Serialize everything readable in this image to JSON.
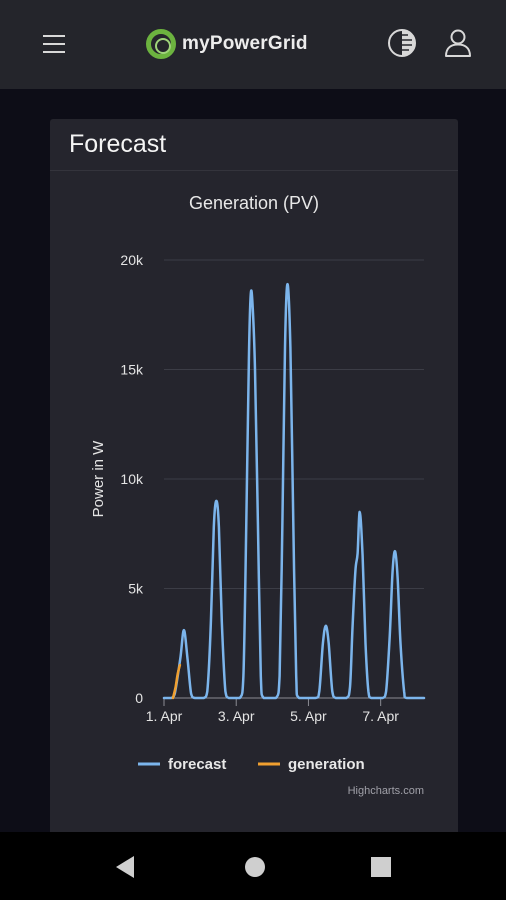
{
  "app": {
    "name": "myPowerGrid"
  },
  "header": {
    "icons": {
      "menu": "hamburger-menu-icon",
      "theme": "contrast-theme-icon",
      "user": "user-profile-icon"
    }
  },
  "card": {
    "title": "Forecast"
  },
  "colors": {
    "forecast": "#7cb5ec",
    "generation": "#f0a030",
    "brand": "#6cb33f",
    "card_bg": "#25252d",
    "page_bg": "#0d0d17"
  },
  "chart_data": {
    "type": "line",
    "title": "Generation (PV)",
    "xlabel": "",
    "ylabel": "Power in W",
    "x_axis": {
      "min_day": 1,
      "max_day": 8.2,
      "ticks": [
        1,
        3,
        5,
        7
      ],
      "tick_labels": [
        "1. Apr",
        "3. Apr",
        "5. Apr",
        "7. Apr"
      ]
    },
    "y_axis": {
      "min": 0,
      "max": 20000,
      "ticks": [
        0,
        5000,
        10000,
        15000,
        20000
      ],
      "tick_labels": [
        "0",
        "5k",
        "10k",
        "15k",
        "20k"
      ]
    },
    "grid": true,
    "legend": "bottom",
    "credits": "Highcharts.com",
    "series": [
      {
        "name": "forecast",
        "color": "#7cb5ec",
        "points": [
          [
            1.0,
            0
          ],
          [
            1.2,
            0
          ],
          [
            1.3,
            200
          ],
          [
            1.45,
            1800
          ],
          [
            1.55,
            3100
          ],
          [
            1.65,
            1800
          ],
          [
            1.75,
            200
          ],
          [
            1.85,
            0
          ],
          [
            2.1,
            0
          ],
          [
            2.2,
            300
          ],
          [
            2.3,
            3500
          ],
          [
            2.38,
            7800
          ],
          [
            2.45,
            9000
          ],
          [
            2.52,
            7800
          ],
          [
            2.6,
            3500
          ],
          [
            2.7,
            300
          ],
          [
            2.8,
            0
          ],
          [
            3.1,
            0
          ],
          [
            3.2,
            1000
          ],
          [
            3.28,
            8000
          ],
          [
            3.35,
            15500
          ],
          [
            3.4,
            18400
          ],
          [
            3.45,
            18000
          ],
          [
            3.52,
            15000
          ],
          [
            3.6,
            8000
          ],
          [
            3.68,
            1000
          ],
          [
            3.76,
            0
          ],
          [
            4.1,
            0
          ],
          [
            4.2,
            1000
          ],
          [
            4.28,
            8000
          ],
          [
            4.35,
            16000
          ],
          [
            4.42,
            18900
          ],
          [
            4.5,
            16000
          ],
          [
            4.58,
            8000
          ],
          [
            4.66,
            1000
          ],
          [
            4.74,
            0
          ],
          [
            5.2,
            0
          ],
          [
            5.3,
            300
          ],
          [
            5.4,
            2500
          ],
          [
            5.48,
            3300
          ],
          [
            5.56,
            2500
          ],
          [
            5.66,
            300
          ],
          [
            5.76,
            0
          ],
          [
            6.05,
            0
          ],
          [
            6.15,
            500
          ],
          [
            6.22,
            3200
          ],
          [
            6.3,
            5800
          ],
          [
            6.36,
            6600
          ],
          [
            6.42,
            8500
          ],
          [
            6.5,
            6500
          ],
          [
            6.58,
            2500
          ],
          [
            6.66,
            300
          ],
          [
            6.74,
            0
          ],
          [
            7.05,
            0
          ],
          [
            7.15,
            300
          ],
          [
            7.25,
            2800
          ],
          [
            7.33,
            5800
          ],
          [
            7.4,
            6700
          ],
          [
            7.47,
            5500
          ],
          [
            7.55,
            2500
          ],
          [
            7.65,
            300
          ],
          [
            7.72,
            0
          ],
          [
            8.2,
            0
          ]
        ]
      },
      {
        "name": "generation",
        "color": "#f0a030",
        "points": [
          [
            1.25,
            0
          ],
          [
            1.32,
            500
          ],
          [
            1.38,
            1100
          ],
          [
            1.44,
            1500
          ]
        ]
      }
    ]
  }
}
